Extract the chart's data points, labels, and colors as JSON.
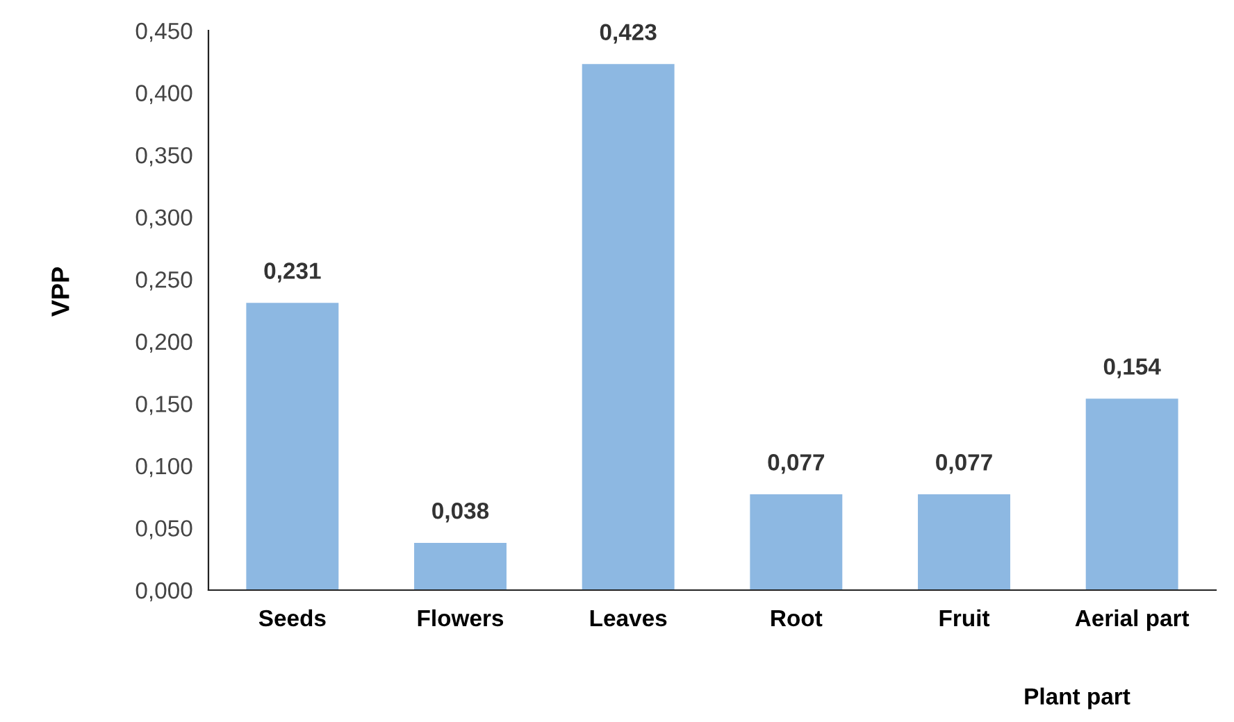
{
  "chart_data": {
    "type": "bar",
    "xlabel": "Plant part",
    "ylabel": "VPP",
    "categories": [
      "Seeds",
      "Flowers",
      "Leaves",
      "Root",
      "Fruit",
      "Aerial part"
    ],
    "values": [
      0.231,
      0.038,
      0.423,
      0.077,
      0.077,
      0.154
    ],
    "value_labels": [
      "0,231",
      "0,038",
      "0,423",
      "0,077",
      "0,077",
      "0,154"
    ],
    "color": "#8db8e2",
    "ylim": [
      0,
      0.45
    ],
    "yticks": [
      {
        "value": 0,
        "label": "0,000"
      },
      {
        "value": 0.05,
        "label": "0,050"
      },
      {
        "value": 0.1,
        "label": "0,100"
      },
      {
        "value": 0.15,
        "label": "0,150"
      },
      {
        "value": 0.2,
        "label": "0,200"
      },
      {
        "value": 0.25,
        "label": "0,250"
      },
      {
        "value": 0.3,
        "label": "0,300"
      },
      {
        "value": 0.35,
        "label": "0,350"
      },
      {
        "value": 0.4,
        "label": "0,400"
      },
      {
        "value": 0.45,
        "label": "0,450"
      }
    ],
    "grid": false,
    "legend": false
  }
}
